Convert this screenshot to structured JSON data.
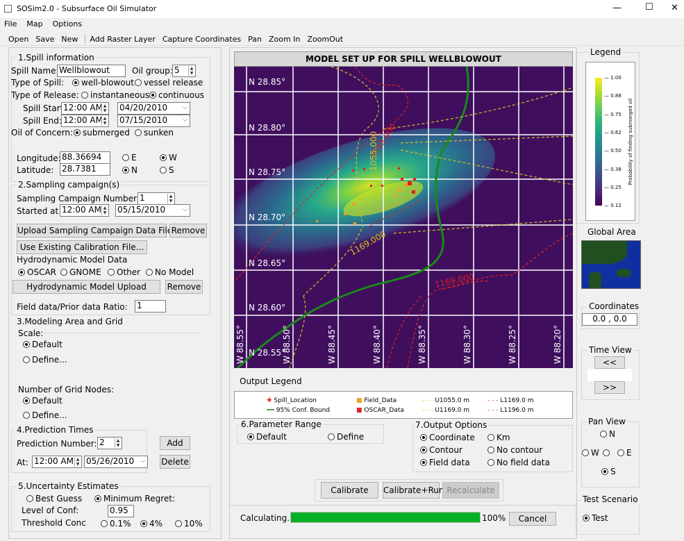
{
  "window": {
    "title": "SOSim2.0 - Subsurface Oil Simulator",
    "min": "—",
    "max": "☐",
    "close": "✕"
  },
  "menu": [
    "File",
    "Map",
    "Options"
  ],
  "toolbar": [
    "Open",
    "Save",
    "New",
    "Add Raster Layer",
    "Capture Coordinates",
    "Pan",
    "Zoom In",
    "ZoomOut"
  ],
  "spill": {
    "heading": "1.Spill information",
    "name_label": "Spill Name:",
    "name_value": "Wellblowout",
    "oil_group_label": "Oil group:",
    "oil_group_value": "5",
    "type_label": "Type of Spill:",
    "type_opt1": "well-blowout",
    "type_opt2": "vessel release",
    "release_label": "Type of Release:",
    "release_opt1": "instantaneous",
    "release_opt2": "continuous",
    "start_label": "Spill Start",
    "start_time": "12:00 AM",
    "start_date": "04/20/2010",
    "end_label": "Spill End:",
    "end_time": "12:00 AM",
    "end_date": "07/15/2010",
    "concern_label": "Oil of Concern:",
    "concern_opt1": "submerged",
    "concern_opt2": "sunken",
    "lon_label": "Longitude:",
    "lon_value": "88.36694",
    "lat_label": "Latitude:",
    "lat_value": "28.7381",
    "e": "E",
    "w": "W",
    "n": "N",
    "s": "S"
  },
  "sampling": {
    "heading": "2.Sampling campaign(s)",
    "number_label": "Sampling Campaign Number:",
    "number_value": "1",
    "started_label": "Started at",
    "started_time": "12:00 AM",
    "started_date": "05/15/2010",
    "upload_btn": "Upload Sampling Campaign Data File",
    "remove_btn": "Remove",
    "calib_btn": "Use Existing Calibration File...",
    "hydro_label": "Hydrodynamic Model Data",
    "hydro_opts": [
      "OSCAR",
      "GNOME",
      "Other",
      "No Model"
    ],
    "hydro_upload_btn": "Hydrodynamic Model Upload",
    "hydro_remove_btn": "Remove",
    "ratio_label": "Field data/Prior data Ratio:",
    "ratio_value": "1"
  },
  "grid": {
    "heading": "3.Modeling Area and Grid",
    "scale_label": "Scale:",
    "default": "Default",
    "define": "Define...",
    "nodes_label": "Number of Grid Nodes:"
  },
  "prediction": {
    "heading": "4.Prediction Times",
    "number_label": "Prediction Number:",
    "number_value": "2",
    "at_label": "At:",
    "at_time": "12:00 AM",
    "at_date": "05/26/2010",
    "add_btn": "Add",
    "delete_btn": "Delete"
  },
  "uncertainty": {
    "heading": "5.Uncertainty Estimates",
    "opt1": "Best Guess",
    "opt2": "Minimum Regret:",
    "conf_label": "Level of Conf:",
    "conf_value": "0.95",
    "thresh_label": "Threshold Conc",
    "t1": "0.1%",
    "t2": "4%",
    "t3": "10%"
  },
  "map": {
    "title": "MODEL SET UP FOR SPILL WELLBLOWOUT",
    "lat_labels": [
      "N 28.85°",
      "N 28.80°",
      "N 28.75°",
      "N 28.70°",
      "N 28.65°",
      "N 28.60°",
      "N 28.55°"
    ],
    "lon_labels": [
      "W 88.55°",
      "W 88.50°",
      "W 88.45°",
      "W 88.40°",
      "W 88.35°",
      "W 88.30°",
      "W 88.25°",
      "W 88.20°"
    ],
    "contour_labels": [
      "1055.000",
      "1169.000",
      "1055.000",
      "1169.000"
    ],
    "colors": {
      "bg": "#3f0f5e",
      "green": "#1a8a1a",
      "yellow": "#d8c020",
      "red": "#e02020"
    }
  },
  "output_legend": {
    "heading": "Output Legend",
    "items": [
      "Spill_Location",
      "95% Conf. Bound",
      "Field_Data",
      "OSCAR_Data",
      "U1055.0 m",
      "U1169.0 m",
      "L1169.0 m",
      "L1196.0 m"
    ]
  },
  "param": {
    "heading": "6.Parameter Range",
    "opt1": "Default",
    "opt2": "Define"
  },
  "output_opts": {
    "heading": "7.Output Options",
    "o1": "Coordinate",
    "o2": "Km",
    "o3": "Contour",
    "o4": "No contour",
    "o5": "Field data",
    "o6": "No field data"
  },
  "actions": {
    "calibrate": "Calibrate",
    "calibrate_run": "Calibrate+Run",
    "recalculate": "Recalculate"
  },
  "status": {
    "label": "Calculating...",
    "progress": 1.0,
    "percent": "100%",
    "cancel": "Cancel"
  },
  "legend": {
    "heading": "Legend",
    "ticks": [
      "1.00",
      "0.88",
      "0.75",
      "0.62",
      "0.50",
      "0.38",
      "0.25",
      "0.12"
    ],
    "axis": "Probability of finding submerged oil"
  },
  "global": {
    "heading": "Global Area"
  },
  "coords": {
    "heading": "Coordinates",
    "value": "0.0 ,  0.0"
  },
  "timeview": {
    "heading": "Time View",
    "prev": "<<",
    "next": ">>"
  },
  "panview": {
    "heading": "Pan View",
    "n": "N",
    "w": "W",
    "e": "E",
    "s": "S"
  },
  "scenario": {
    "heading": "Test Scenario",
    "opt": "Test"
  }
}
